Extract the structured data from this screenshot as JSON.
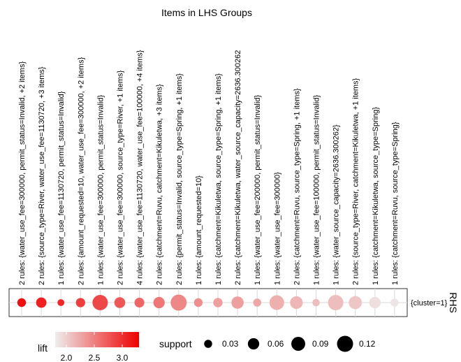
{
  "chart_data": {
    "type": "scatter",
    "title": "Items in LHS Groups",
    "x_axis_label": "",
    "y_axis_label": "RHS",
    "rhs_categories": [
      "{cluster=1}"
    ],
    "lhs_groups": [
      "2 rules: {water_use_fee=300000, permit_status=Invalid, +2 items}",
      "2 rules: {source_type=River, water_use_fee=1130720, +3 items}",
      "1 rules: {water_use_fee=1130720, permit_status=Invalid}",
      "2 rules: {amount_requested=10, water_use_fee=300000, +2 items}",
      "1 rules: {water_use_fee=300000, permit_status=Invalid}",
      "2 rules: {water_use_fee=300000, source_type=River, +1 items}",
      "4 rules: {water_use_fee=1130720, water_use_fee=100000, +4 items}",
      "2 rules: {catchment=Ruvu, catchment=Kikuletwa, +3 items}",
      "2 rules: {permit_status=Invalid, source_type=Spring, +1 items}",
      "1 rules: {amount_requested=10}",
      "1 rules: {catchment=Kikuletwa, source_type=Spring, +1 items}",
      "2 rules: {catchment=Kikuletwa, water_source_capacity=2636.300262",
      "1 rules: {water_use_fee=200000, permit_status=Invalid}",
      "1 rules: {water_use_fee=300000}",
      "2 rules: {catchment=Ruvu, source_type=Spring, +1 items}",
      "1 rules: {water_use_fee=100000, permit_status=Invalid}",
      "1 rules: {water_source_capacity=2636.300262}",
      "2 rules: {source_type=River, catchment=Kikuletwa, +1 items}",
      "1 rules: {catchment=Kikuletwa, source_type=Spring}",
      "1 rules: {catchment=Ruvu, source_type=Spring}"
    ],
    "points": [
      {
        "rhs": "{cluster=1}",
        "support": 0.035,
        "lift": 3.2
      },
      {
        "rhs": "{cluster=1}",
        "support": 0.05,
        "lift": 3.1
      },
      {
        "rhs": "{cluster=1}",
        "support": 0.022,
        "lift": 3.05
      },
      {
        "rhs": "{cluster=1}",
        "support": 0.04,
        "lift": 2.9
      },
      {
        "rhs": "{cluster=1}",
        "support": 0.11,
        "lift": 2.85
      },
      {
        "rhs": "{cluster=1}",
        "support": 0.055,
        "lift": 2.75
      },
      {
        "rhs": "{cluster=1}",
        "support": 0.045,
        "lift": 2.65
      },
      {
        "rhs": "{cluster=1}",
        "support": 0.06,
        "lift": 2.55
      },
      {
        "rhs": "{cluster=1}",
        "support": 0.12,
        "lift": 2.45
      },
      {
        "rhs": "{cluster=1}",
        "support": 0.035,
        "lift": 2.4
      },
      {
        "rhs": "{cluster=1}",
        "support": 0.04,
        "lift": 2.3
      },
      {
        "rhs": "{cluster=1}",
        "support": 0.07,
        "lift": 2.3
      },
      {
        "rhs": "{cluster=1}",
        "support": 0.03,
        "lift": 2.25
      },
      {
        "rhs": "{cluster=1}",
        "support": 0.1,
        "lift": 2.2
      },
      {
        "rhs": "{cluster=1}",
        "support": 0.075,
        "lift": 2.15
      },
      {
        "rhs": "{cluster=1}",
        "support": 0.025,
        "lift": 2.1
      },
      {
        "rhs": "{cluster=1}",
        "support": 0.11,
        "lift": 2.1
      },
      {
        "rhs": "{cluster=1}",
        "support": 0.08,
        "lift": 2.05
      },
      {
        "rhs": "{cluster=1}",
        "support": 0.06,
        "lift": 1.9
      },
      {
        "rhs": "{cluster=1}",
        "support": 0.03,
        "lift": 1.85
      }
    ],
    "lift_legend": {
      "title": "lift",
      "ticks": [
        "2.0",
        "2.5",
        "3.0"
      ],
      "tick_values": [
        2.0,
        2.5,
        3.0
      ],
      "range": [
        1.8,
        3.3
      ],
      "color_low": "#eeeeee",
      "color_high": "#ee0000"
    },
    "support_legend": {
      "title": "support",
      "labels": [
        "0.03",
        "0.06",
        "0.09",
        "0.12"
      ],
      "values": [
        0.03,
        0.06,
        0.09,
        0.12
      ]
    },
    "grid": true
  }
}
